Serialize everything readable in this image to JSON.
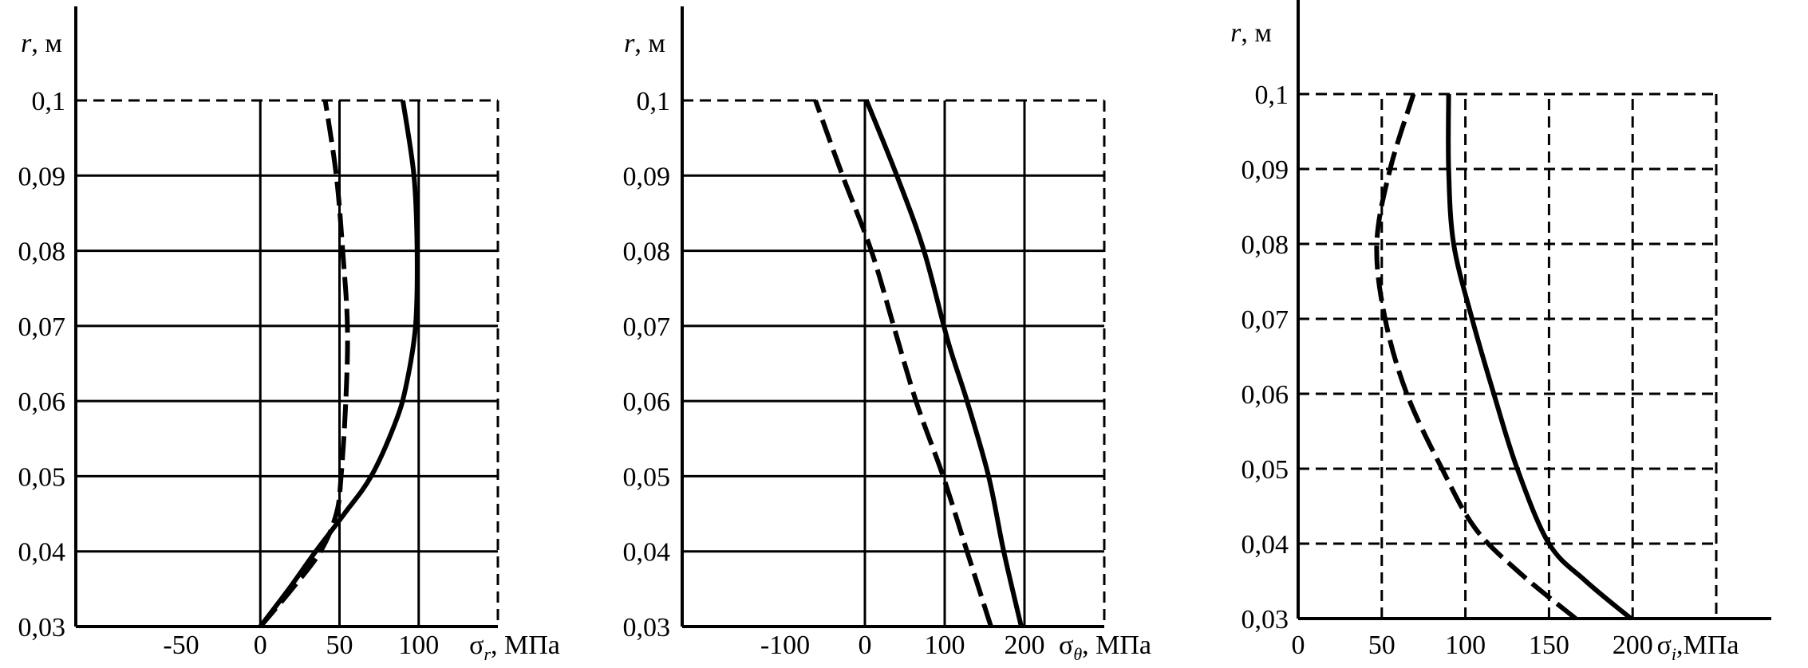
{
  "chart_data": [
    {
      "type": "line",
      "ylabel": "r, м",
      "xlabel": "σr, МПа",
      "xlabel_symbol": "σ",
      "xlabel_sub": "r",
      "xlabel_unit": ", МПа",
      "xlim": [
        -50,
        150
      ],
      "ylim": [
        0.03,
        0.1
      ],
      "x_ticks": [
        "-50",
        "0",
        "50",
        "100"
      ],
      "x_tick_values": [
        -50,
        0,
        50,
        100
      ],
      "y_ticks": [
        "0,03",
        "0,04",
        "0,05",
        "0,06",
        "0,07",
        "0,08",
        "0,09",
        "0,1"
      ],
      "y_tick_values": [
        0.03,
        0.04,
        0.05,
        0.06,
        0.07,
        0.08,
        0.09,
        0.1
      ],
      "grid_v": [
        0,
        50,
        100
      ],
      "grid_h": [
        0.04,
        0.05,
        0.06,
        0.07,
        0.08,
        0.09
      ],
      "grid_style": "solid",
      "series": [
        {
          "style": "solid",
          "points": [
            [
              0,
              0.03
            ],
            [
              18,
              0.035
            ],
            [
              35,
              0.04
            ],
            [
              53,
              0.045
            ],
            [
              70,
              0.05
            ],
            [
              85,
              0.057
            ],
            [
              92,
              0.062
            ],
            [
              98,
              0.07
            ],
            [
              99,
              0.08
            ],
            [
              97,
              0.09
            ],
            [
              90,
              0.1
            ]
          ]
        },
        {
          "style": "dashed",
          "points": [
            [
              0,
              0.03
            ],
            [
              20,
              0.035
            ],
            [
              38,
              0.04
            ],
            [
              48,
              0.045
            ],
            [
              51,
              0.05
            ],
            [
              54,
              0.06
            ],
            [
              55,
              0.07
            ],
            [
              52,
              0.08
            ],
            [
              48,
              0.09
            ],
            [
              41,
              0.1
            ]
          ]
        }
      ]
    },
    {
      "type": "line",
      "ylabel": "r, м",
      "xlabel": "σθ, МПа",
      "xlabel_symbol": "σ",
      "xlabel_sub": "θ",
      "xlabel_unit": ", МПа",
      "xlim": [
        -100,
        300
      ],
      "ylim": [
        0.03,
        0.1
      ],
      "x_ticks": [
        "-100",
        "0",
        "100",
        "200"
      ],
      "x_tick_values": [
        -100,
        0,
        100,
        200
      ],
      "y_ticks": [
        "0,03",
        "0,04",
        "0,05",
        "0,06",
        "0,07",
        "0,08",
        "0,09",
        "0,1"
      ],
      "y_tick_values": [
        0.03,
        0.04,
        0.05,
        0.06,
        0.07,
        0.08,
        0.09,
        0.1
      ],
      "grid_v": [
        0,
        100,
        200
      ],
      "grid_h": [
        0.04,
        0.05,
        0.06,
        0.07,
        0.08,
        0.09
      ],
      "grid_style": "solid",
      "series": [
        {
          "style": "solid",
          "points": [
            [
              196,
              0.03
            ],
            [
              174,
              0.04
            ],
            [
              155,
              0.05
            ],
            [
              128,
              0.06
            ],
            [
              104,
              0.068
            ],
            [
              74,
              0.08
            ],
            [
              40,
              0.09
            ],
            [
              2,
              0.1
            ]
          ]
        },
        {
          "style": "dashed",
          "points": [
            [
              158,
              0.03
            ],
            [
              128,
              0.04
            ],
            [
              98,
              0.05
            ],
            [
              64,
              0.06
            ],
            [
              36,
              0.07
            ],
            [
              8,
              0.08
            ],
            [
              -28,
              0.09
            ],
            [
              -62,
              0.1
            ]
          ]
        }
      ]
    },
    {
      "type": "line",
      "ylabel": "r, м",
      "xlabel": "σi,МПа",
      "xlabel_symbol": "σ",
      "xlabel_sub": "i",
      "xlabel_unit": ",МПа",
      "xlim": [
        0,
        250
      ],
      "ylim": [
        0.03,
        0.1
      ],
      "x_ticks": [
        "0",
        "50",
        "100",
        "150",
        "200"
      ],
      "x_tick_values": [
        0,
        50,
        100,
        150,
        200
      ],
      "y_ticks": [
        "0,03",
        "0,04",
        "0,05",
        "0,06",
        "0,07",
        "0,08",
        "0,09",
        "0,1"
      ],
      "y_tick_values": [
        0.03,
        0.04,
        0.05,
        0.06,
        0.07,
        0.08,
        0.09,
        0.1
      ],
      "grid_v": [
        50,
        100,
        150,
        200
      ],
      "grid_h": [
        0.04,
        0.05,
        0.06,
        0.07,
        0.08,
        0.09
      ],
      "grid_style": "dashed",
      "series": [
        {
          "style": "solid",
          "points": [
            [
              199,
              0.03
            ],
            [
              172,
              0.035
            ],
            [
              150,
              0.04
            ],
            [
              131,
              0.05
            ],
            [
              117,
              0.06
            ],
            [
              104,
              0.07
            ],
            [
              93,
              0.08
            ],
            [
              90,
              0.09
            ],
            [
              90,
              0.1
            ]
          ]
        },
        {
          "style": "dashed",
          "points": [
            [
              166,
              0.03
            ],
            [
              133,
              0.036
            ],
            [
              106,
              0.042
            ],
            [
              86,
              0.05
            ],
            [
              65,
              0.06
            ],
            [
              52,
              0.07
            ],
            [
              47,
              0.08
            ],
            [
              55,
              0.09
            ],
            [
              69,
              0.1
            ]
          ]
        }
      ]
    }
  ]
}
